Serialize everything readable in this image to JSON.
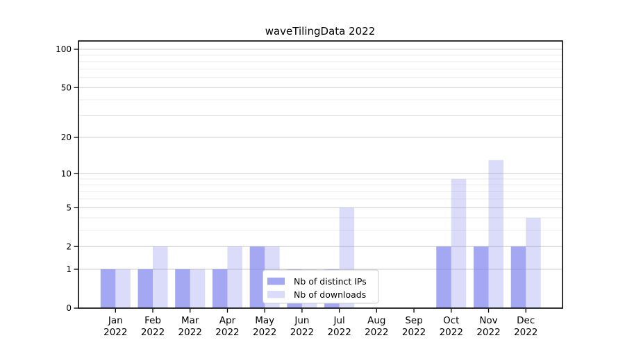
{
  "title": "waveTilingData 2022",
  "chart_data": {
    "type": "bar",
    "title": "waveTilingData 2022",
    "categories": [
      "Jan 2022",
      "Feb 2022",
      "Mar 2022",
      "Apr 2022",
      "May 2022",
      "Jun 2022",
      "Jul 2022",
      "Aug 2022",
      "Sep 2022",
      "Oct 2022",
      "Nov 2022",
      "Dec 2022"
    ],
    "series": [
      {
        "name": "Nb of distinct IPs",
        "color": "#8187ee",
        "fill_opacity": 0.72,
        "values": [
          1,
          1,
          1,
          1,
          2,
          1,
          1,
          0,
          0,
          2,
          2,
          2
        ]
      },
      {
        "name": "Nb of downloads",
        "color": "#8187ee",
        "fill_opacity": 0.29,
        "values": [
          1,
          2,
          1,
          2,
          2,
          1,
          5,
          0,
          0,
          9,
          13,
          4
        ]
      }
    ],
    "yscale": "symlog",
    "ylim": [
      0,
      100
    ],
    "y_major_ticks": [
      0,
      1,
      2,
      5,
      10,
      20,
      50,
      100
    ],
    "y_minor_gridlines": [
      3,
      4,
      6,
      7,
      8,
      9,
      30,
      40,
      60,
      70,
      80,
      90
    ],
    "grid": true,
    "legend": {
      "entries": [
        "Nb of distinct IPs",
        "Nb of downloads"
      ],
      "position": "lower center"
    }
  },
  "colors": {
    "bar_distinct_rendered": "#a8acf2",
    "bar_downloads_rendered": "#dadcf8",
    "major_grid": "#cccccc",
    "minor_grid": "#ececec",
    "axis": "#000000",
    "legend_border": "#cccccc",
    "background": "#ffffff"
  }
}
